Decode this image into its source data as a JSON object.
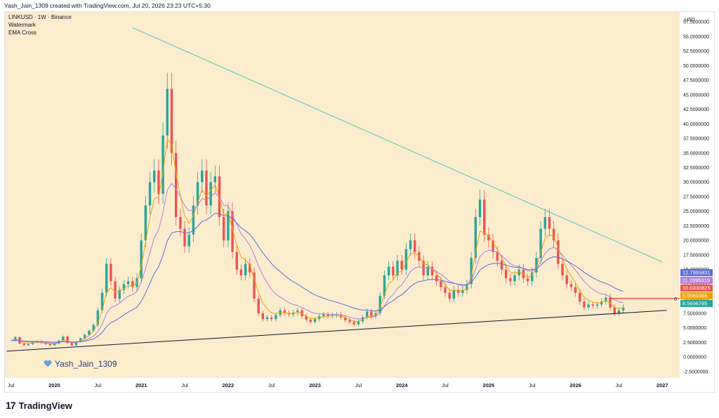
{
  "header": {
    "caption": "Yash_Jain_1309 created with TradingView.com, Jul 20, 2026 23:23 UTC+5:30"
  },
  "legend": {
    "symbol_line": "LINKUSD · 1W · Binance",
    "watermark_label": "Watermark",
    "indicator_label": "EMA Cross"
  },
  "watermark": {
    "text": "Yash_Jain_1309"
  },
  "branding": {
    "logo_mark": "17",
    "name": "TradingView"
  },
  "colors": {
    "chart_background": "#fbeccd",
    "candle_up": "#26a69a",
    "candle_down": "#ef5350",
    "ema_fast": "#f0a202",
    "ema_slow": "#b57edc",
    "ema_long": "#5b6fd6",
    "trendline_upper": "#4fc9b8",
    "trendline_lower": "#131722",
    "hline": "#e53935"
  },
  "chart_data": {
    "type": "candlestick",
    "symbol": "LINKUSD",
    "interval": "1W",
    "exchange": "Binance",
    "currency": "USD",
    "price_axis": {
      "unit": "USD",
      "ticks": [
        "57.5000000",
        "55.0000000",
        "52.5000000",
        "50.0000000",
        "47.5000000",
        "45.0000000",
        "42.5000000",
        "40.0000000",
        "37.5000000",
        "35.0000000",
        "32.5000000",
        "30.0000000",
        "27.5000000",
        "25.0000000",
        "22.5000000",
        "20.0000000",
        "17.5000000",
        "15.0000000",
        "12.5000000",
        "10.0000000",
        "7.5000000",
        "5.0000000",
        "2.5000000",
        "0.0000000",
        "-2.5000000"
      ],
      "ylim": [
        -3.6,
        59.2
      ]
    },
    "time_axis": {
      "ticks": [
        "Jul",
        "2020",
        "Jul",
        "2021",
        "Jul",
        "2022",
        "Jul",
        "2023",
        "Jul",
        "2024",
        "Jul",
        "2025",
        "Jul",
        "2026",
        "Jul",
        "2027"
      ]
    },
    "price_labels": [
      {
        "value": "12.7995831",
        "color": "#5b6fd6"
      },
      {
        "value": "11.2895319",
        "color": "#b57edc"
      },
      {
        "value": "10.0330825",
        "color": "#ef5350"
      },
      {
        "value": "9.0069398",
        "color": "#f0a202"
      },
      {
        "value": "8.5696785",
        "color": "#26a69a"
      }
    ],
    "hline_label": "0",
    "close_series": [
      [
        2019.5,
        2.8
      ],
      [
        2019.55,
        3.4
      ],
      [
        2019.6,
        2.3
      ],
      [
        2019.65,
        2.0
      ],
      [
        2019.7,
        2.2
      ],
      [
        2019.75,
        2.5
      ],
      [
        2019.8,
        2.7
      ],
      [
        2019.85,
        2.4
      ],
      [
        2019.9,
        2.2
      ],
      [
        2019.95,
        2.0
      ],
      [
        2020.0,
        2.3
      ],
      [
        2020.05,
        2.8
      ],
      [
        2020.1,
        3.5
      ],
      [
        2020.15,
        2.4
      ],
      [
        2020.2,
        2.0
      ],
      [
        2020.25,
        2.6
      ],
      [
        2020.3,
        3.2
      ],
      [
        2020.35,
        3.8
      ],
      [
        2020.4,
        4.5
      ],
      [
        2020.45,
        5.5
      ],
      [
        2020.5,
        8.0
      ],
      [
        2020.55,
        11.0
      ],
      [
        2020.6,
        16.0
      ],
      [
        2020.65,
        13.0
      ],
      [
        2020.7,
        10.0
      ],
      [
        2020.75,
        11.5
      ],
      [
        2020.8,
        12.5
      ],
      [
        2020.85,
        13.0
      ],
      [
        2020.9,
        12.0
      ],
      [
        2020.95,
        13.5
      ],
      [
        2021.0,
        20.0
      ],
      [
        2021.05,
        26.0
      ],
      [
        2021.1,
        30.0
      ],
      [
        2021.15,
        32.0
      ],
      [
        2021.2,
        28.0
      ],
      [
        2021.25,
        38.0
      ],
      [
        2021.3,
        46.0
      ],
      [
        2021.35,
        35.0
      ],
      [
        2021.4,
        24.0
      ],
      [
        2021.45,
        22.0
      ],
      [
        2021.5,
        19.0
      ],
      [
        2021.55,
        21.0
      ],
      [
        2021.6,
        26.0
      ],
      [
        2021.65,
        30.0
      ],
      [
        2021.7,
        32.0
      ],
      [
        2021.75,
        26.0
      ],
      [
        2021.8,
        30.0
      ],
      [
        2021.85,
        31.0
      ],
      [
        2021.9,
        24.0
      ],
      [
        2021.95,
        20.0
      ],
      [
        2022.0,
        25.0
      ],
      [
        2022.05,
        18.0
      ],
      [
        2022.1,
        15.0
      ],
      [
        2022.15,
        14.0
      ],
      [
        2022.2,
        16.0
      ],
      [
        2022.25,
        14.5
      ],
      [
        2022.3,
        10.0
      ],
      [
        2022.35,
        7.5
      ],
      [
        2022.4,
        6.5
      ],
      [
        2022.45,
        6.8
      ],
      [
        2022.5,
        6.5
      ],
      [
        2022.55,
        7.2
      ],
      [
        2022.6,
        8.0
      ],
      [
        2022.65,
        7.5
      ],
      [
        2022.7,
        7.3
      ],
      [
        2022.75,
        7.6
      ],
      [
        2022.8,
        8.0
      ],
      [
        2022.85,
        7.0
      ],
      [
        2022.9,
        6.4
      ],
      [
        2022.95,
        6.0
      ],
      [
        2023.0,
        6.5
      ],
      [
        2023.05,
        7.0
      ],
      [
        2023.1,
        7.3
      ],
      [
        2023.15,
        7.0
      ],
      [
        2023.2,
        7.2
      ],
      [
        2023.25,
        7.3
      ],
      [
        2023.3,
        6.8
      ],
      [
        2023.35,
        6.3
      ],
      [
        2023.4,
        6.0
      ],
      [
        2023.45,
        5.6
      ],
      [
        2023.5,
        6.1
      ],
      [
        2023.55,
        6.8
      ],
      [
        2023.6,
        7.8
      ],
      [
        2023.65,
        7.0
      ],
      [
        2023.7,
        7.5
      ],
      [
        2023.75,
        10.5
      ],
      [
        2023.8,
        14.0
      ],
      [
        2023.85,
        15.5
      ],
      [
        2023.9,
        14.0
      ],
      [
        2023.95,
        16.5
      ],
      [
        2024.0,
        15.0
      ],
      [
        2024.05,
        18.5
      ],
      [
        2024.1,
        20.0
      ],
      [
        2024.15,
        18.0
      ],
      [
        2024.2,
        16.5
      ],
      [
        2024.25,
        14.0
      ],
      [
        2024.3,
        15.5
      ],
      [
        2024.35,
        14.0
      ],
      [
        2024.4,
        13.0
      ],
      [
        2024.45,
        12.0
      ],
      [
        2024.5,
        11.0
      ],
      [
        2024.55,
        10.0
      ],
      [
        2024.6,
        11.5
      ],
      [
        2024.65,
        11.0
      ],
      [
        2024.7,
        11.5
      ],
      [
        2024.75,
        12.5
      ],
      [
        2024.8,
        17.0
      ],
      [
        2024.85,
        24.0
      ],
      [
        2024.9,
        27.0
      ],
      [
        2024.95,
        21.0
      ],
      [
        2025.0,
        20.0
      ],
      [
        2025.05,
        18.0
      ],
      [
        2025.1,
        16.5
      ],
      [
        2025.15,
        15.0
      ],
      [
        2025.2,
        13.5
      ],
      [
        2025.25,
        13.0
      ],
      [
        2025.3,
        14.0
      ],
      [
        2025.35,
        15.0
      ],
      [
        2025.4,
        13.5
      ],
      [
        2025.45,
        13.0
      ],
      [
        2025.5,
        14.5
      ],
      [
        2025.55,
        17.0
      ],
      [
        2025.6,
        22.0
      ],
      [
        2025.65,
        24.0
      ],
      [
        2025.7,
        22.0
      ],
      [
        2025.75,
        20.0
      ],
      [
        2025.8,
        16.0
      ],
      [
        2025.85,
        14.0
      ],
      [
        2025.9,
        12.5
      ],
      [
        2025.95,
        12.0
      ],
      [
        2026.0,
        11.0
      ],
      [
        2026.05,
        9.5
      ],
      [
        2026.1,
        8.5
      ],
      [
        2026.15,
        9.0
      ],
      [
        2026.2,
        8.8
      ],
      [
        2026.25,
        9.0
      ],
      [
        2026.3,
        9.5
      ],
      [
        2026.35,
        10.2
      ],
      [
        2026.4,
        8.5
      ],
      [
        2026.45,
        7.5
      ],
      [
        2026.5,
        8.0
      ],
      [
        2026.55,
        8.5
      ]
    ],
    "trendlines": [
      {
        "name": "upper",
        "from": [
          2020.9,
          56.5
        ],
        "to": [
          2027.0,
          16.3
        ]
      },
      {
        "name": "lower",
        "from": [
          2019.45,
          1.0
        ],
        "to": [
          2027.05,
          8.0
        ]
      }
    ],
    "horizontal_line": {
      "value": 10.0330825,
      "from_x": 2026.4
    }
  }
}
